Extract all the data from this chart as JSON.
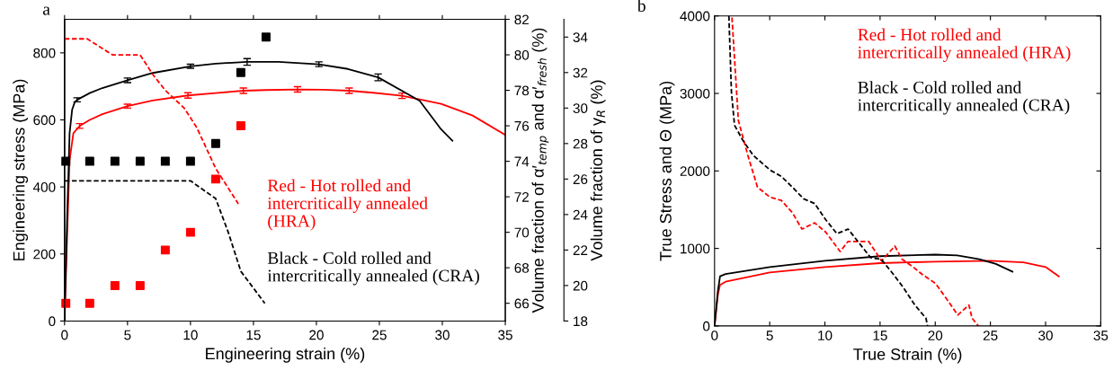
{
  "chart_data": [
    {
      "type": "line",
      "title": "a",
      "xlabel": "Engineering strain (%)",
      "ylabel": "Engineering stress (MPa)",
      "y2label": "Volume fraction of α′$_{temp}$ and α′$_{fresh}$ (%)",
      "y3label": "Volume fraction of γ$_{R}$ (%)",
      "xlim": [
        0,
        35
      ],
      "xticks": [
        0,
        5,
        10,
        15,
        20,
        25,
        30,
        35
      ],
      "ylim": [
        0,
        900
      ],
      "yticks": [
        0,
        200,
        400,
        600,
        800
      ],
      "y2lim": [
        65,
        82
      ],
      "y2ticks": [
        66,
        68,
        70,
        72,
        74,
        76,
        78,
        80,
        82
      ],
      "y3lim": [
        18,
        35
      ],
      "y3ticks": [
        18,
        20,
        22,
        24,
        26,
        28,
        30,
        32,
        34
      ],
      "annotations": [
        "Red - Hot rolled and\nintercritically annealed\n(HRA)",
        "Black - Cold rolled and\nintercritically annealed (CRA)"
      ],
      "series": [
        {
          "color": "#ff0000",
          "line_style": "solid",
          "x": [
            0,
            0.2,
            0.4,
            0.7,
            1.2,
            2,
            3,
            5,
            7,
            9.8,
            12,
            14.2,
            16,
            18.5,
            20.5,
            22.6,
            24.5,
            26.8,
            29.9,
            32.4,
            35
          ],
          "values": [
            0,
            250,
            480,
            560,
            582,
            600,
            617,
            641,
            658,
            673,
            680,
            687,
            689,
            691,
            690,
            687,
            681,
            672,
            648,
            613,
            555
          ],
          "errors": [
            null,
            null,
            null,
            null,
            7,
            null,
            null,
            6,
            null,
            8,
            null,
            8,
            null,
            8,
            null,
            8,
            null,
            8,
            null,
            null,
            null
          ]
        },
        {
          "color": "#000000",
          "line_style": "solid",
          "x": [
            0,
            0.2,
            0.4,
            0.6,
            0.8,
            1,
            2,
            3,
            5,
            7,
            10,
            12,
            14.5,
            17,
            20.2,
            22.5,
            24.9,
            28.2,
            29.9,
            30.8
          ],
          "values": [
            0,
            300,
            560,
            630,
            652,
            660,
            680,
            695,
            718,
            740,
            760,
            768,
            773,
            773,
            766,
            752,
            727,
            657,
            572,
            538
          ],
          "errors": [
            null,
            null,
            null,
            null,
            null,
            6,
            null,
            null,
            7,
            null,
            6,
            null,
            10,
            null,
            7,
            null,
            10,
            null,
            null,
            null
          ]
        },
        {
          "type": "line",
          "axis": "y3",
          "color": "#ff0000",
          "line_style": "dashed",
          "x": [
            0,
            1.8,
            3.8,
            6,
            7,
            8,
            9.5,
            10.5,
            12,
            13.8
          ],
          "values": [
            33.9,
            33.9,
            33.0,
            33.0,
            31.9,
            31.0,
            30.0,
            28.9,
            26.6,
            24.6
          ]
        },
        {
          "type": "line",
          "axis": "y3",
          "color": "#000000",
          "line_style": "dashed",
          "x": [
            0,
            10,
            11,
            12,
            13,
            14,
            15.9
          ],
          "values": [
            25.9,
            25.9,
            25.4,
            24.9,
            23.0,
            20.8,
            19.0
          ]
        },
        {
          "type": "scatter",
          "axis": "y2",
          "color": "#ff0000",
          "marker": "square",
          "x": [
            0.1,
            2,
            4,
            6,
            8,
            10,
            12,
            14
          ],
          "values": [
            66,
            66,
            67,
            67,
            69,
            70,
            73,
            76
          ]
        },
        {
          "type": "scatter",
          "axis": "y2",
          "color": "#000000",
          "marker": "square",
          "x": [
            0.1,
            2,
            4,
            6,
            8,
            10,
            12,
            14,
            16
          ],
          "values": [
            74,
            74,
            74,
            74,
            74,
            74,
            75,
            79,
            81
          ]
        }
      ]
    },
    {
      "type": "line",
      "title": "b",
      "xlabel": "True Strain (%)",
      "ylabel": "True Stress and Θ (MPa)",
      "xlim": [
        0,
        35
      ],
      "xticks": [
        0,
        5,
        10,
        15,
        20,
        25,
        30,
        35
      ],
      "ylim": [
        0,
        4000
      ],
      "yticks": [
        0,
        1000,
        2000,
        3000,
        4000
      ],
      "annotations": [
        "Red - Hot rolled and\nintercritically annealed (HRA)",
        "Black - Cold rolled and\nintercritically annealed (CRA)"
      ],
      "series": [
        {
          "color": "#ff0000",
          "line_style": "solid",
          "x": [
            0,
            0.3,
            0.5,
            1,
            5,
            10,
            15,
            20,
            25,
            28,
            30,
            31.2
          ],
          "values": [
            0,
            400,
            530,
            570,
            690,
            760,
            810,
            830,
            840,
            820,
            760,
            640
          ]
        },
        {
          "color": "#000000",
          "line_style": "solid",
          "x": [
            0,
            0.3,
            0.5,
            1,
            5,
            10,
            15,
            20,
            22,
            24,
            25.5,
            27
          ],
          "values": [
            0,
            450,
            640,
            670,
            760,
            840,
            900,
            920,
            910,
            860,
            800,
            700
          ]
        },
        {
          "color": "#ff0000",
          "line_style": "dashed",
          "x": [
            1.58,
            2.16,
            3.02,
            3.89,
            5.04,
            6.05,
            7.06,
            7.92,
            9.07,
            10.08,
            11.38,
            12.1,
            13.97,
            15.13,
            16.34,
            17.0,
            18.0,
            18.87,
            20.02,
            21.03,
            22.04,
            23.05,
            23.34,
            23.91
          ],
          "values": [
            3980,
            2650,
            2200,
            1790,
            1660,
            1620,
            1460,
            1250,
            1330,
            1210,
            960,
            1090,
            1090,
            840,
            1030,
            860,
            760,
            660,
            550,
            350,
            140,
            270,
            100,
            0
          ]
        },
        {
          "color": "#000000",
          "line_style": "dashed",
          "x": [
            1.3,
            1.53,
            1.81,
            2.54,
            3.51,
            5.04,
            6.05,
            7.06,
            8.07,
            9.07,
            10.08,
            11.09,
            12.1,
            13.1,
            14.15,
            15.1,
            16.13,
            17.14,
            18.15,
            19.16,
            19.3
          ],
          "values": [
            4000,
            3020,
            2590,
            2400,
            2200,
            2010,
            1930,
            1790,
            1640,
            1580,
            1370,
            1190,
            1250,
            1070,
            880,
            860,
            680,
            490,
            270,
            100,
            0
          ]
        }
      ]
    }
  ]
}
